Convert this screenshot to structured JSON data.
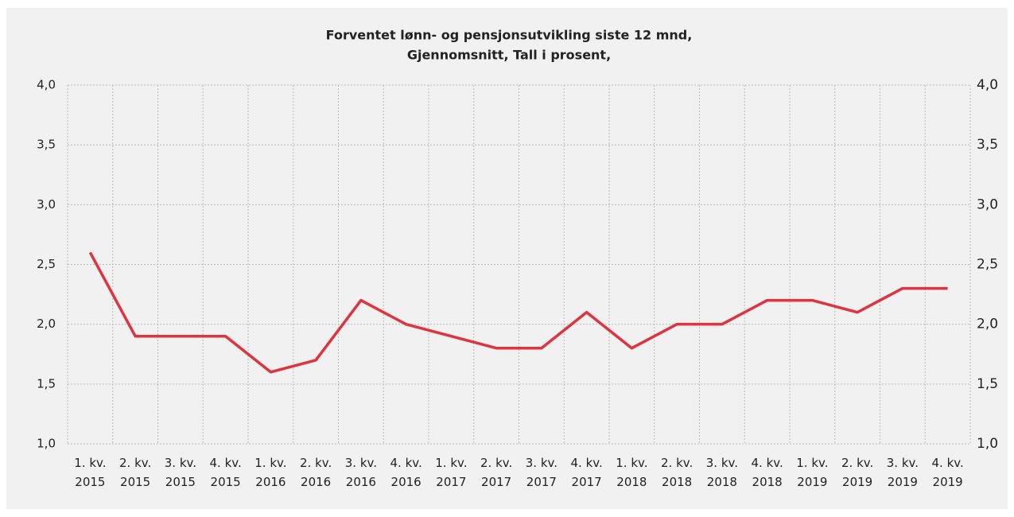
{
  "chart_data": {
    "type": "line",
    "title": "Forventet lønn- og pensjonsutvikling siste 12 mnd,",
    "subtitle": "Gjennomsnitt, Tall i prosent,",
    "categories": [
      "1. kv. 2015",
      "2. kv. 2015",
      "3. kv. 2015",
      "4. kv. 2015",
      "1. kv. 2016",
      "2. kv. 2016",
      "3. kv. 2016",
      "4. kv. 2016",
      "1. kv. 2017",
      "2. kv. 2017",
      "3. kv. 2017",
      "4. kv. 2017",
      "1. kv. 2018",
      "2. kv. 2018",
      "3. kv. 2018",
      "4. kv. 2018",
      "1. kv. 2019",
      "2. kv. 2019",
      "3. kv. 2019",
      "4. kv. 2019"
    ],
    "values": [
      2.6,
      1.9,
      1.9,
      1.9,
      1.6,
      1.7,
      2.2,
      2.0,
      1.9,
      1.8,
      1.8,
      2.1,
      1.8,
      2.0,
      2.0,
      2.2,
      2.2,
      2.1,
      2.3,
      2.3
    ],
    "color": "#e0323f",
    "ylim": [
      1,
      4
    ],
    "yticks": [
      {
        "value": 1,
        "label": "1,0"
      },
      {
        "value": 1.5,
        "label": "1,5"
      },
      {
        "value": 2,
        "label": "2,0"
      },
      {
        "value": 2.5,
        "label": "2,5"
      },
      {
        "value": 3,
        "label": "3,0"
      },
      {
        "value": 3.5,
        "label": "3,5"
      },
      {
        "value": 4,
        "label": "4,0"
      }
    ],
    "y2lim": [
      1,
      4
    ],
    "y2ticks": [
      {
        "value": 1,
        "label": "1,0"
      },
      {
        "value": 1.5,
        "label": "1,5"
      },
      {
        "value": 2,
        "label": "2,0"
      },
      {
        "value": 2.5,
        "label": "2,5"
      },
      {
        "value": 3,
        "label": "3,0"
      },
      {
        "value": 3.5,
        "label": "3,5"
      },
      {
        "value": 4,
        "label": "4,0"
      }
    ],
    "grid": true
  }
}
